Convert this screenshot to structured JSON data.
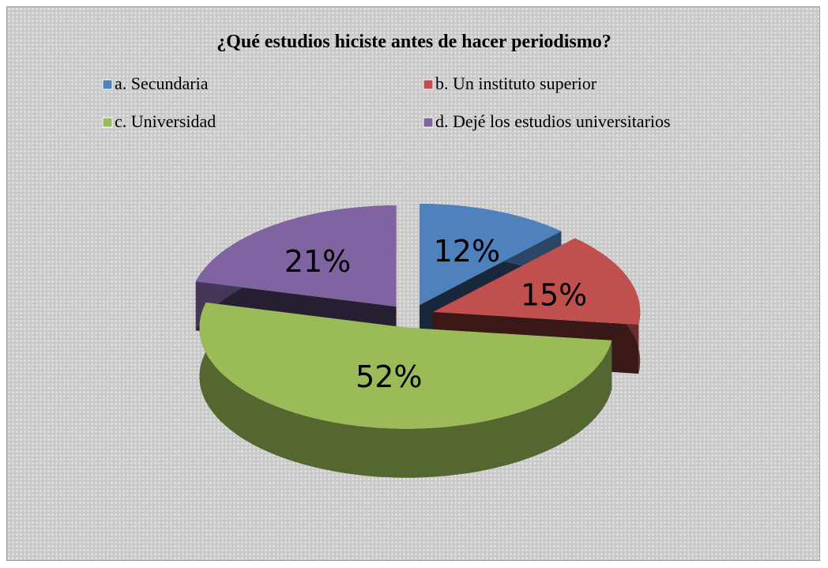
{
  "chart_data": {
    "type": "pie",
    "title": "¿Qué estudios hiciste antes de hacer periodismo?",
    "categories": [
      "a. Secundaria",
      "b. Un instituto superior",
      "c. Universidad",
      "d. Dejé los estudios universitarios"
    ],
    "values": [
      12,
      15,
      52,
      21
    ],
    "value_labels": [
      "12%",
      "15%",
      "52%",
      "21%"
    ],
    "colors": [
      "#4f81bd",
      "#c0504d",
      "#9bbb59",
      "#8064a2"
    ]
  }
}
